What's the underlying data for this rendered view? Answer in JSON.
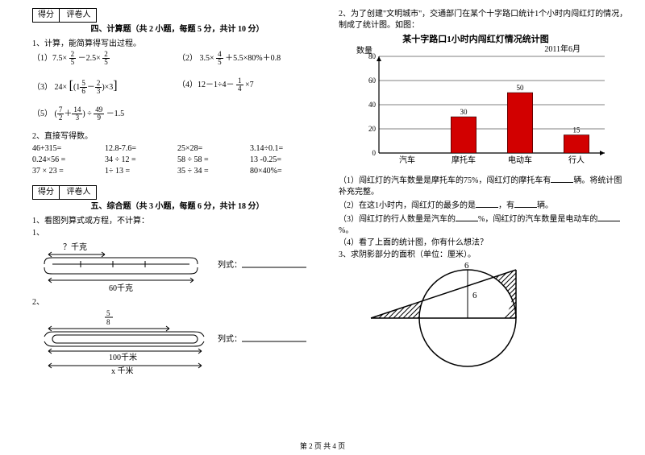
{
  "scoreBox": {
    "c1": "得分",
    "c2": "评卷人"
  },
  "sec4": {
    "title": "四、计算题（共 2 小题，每题 5 分，共计 10 分）",
    "q1": "1、计算，能简算得写出过程。",
    "q1_1a": "（1）7.5×",
    "q1_1b": "－2.5×",
    "q1_2a": "（2）",
    "q1_2b": "3.5×",
    "q1_2c": "＋5.5×80%＋0.8",
    "q1_3a": "（3）",
    "q1_3b": "24×",
    "q1_4a": "（4）12－1÷4－",
    "q1_4b": "×7",
    "q1_5a": "（5）",
    "q1_5b": "÷",
    "q1_5c": "－1.5",
    "q2": "2、直接写得数。",
    "r": [
      [
        "46+315=",
        "12.8-7.6=",
        "25×28=",
        "3.14÷0.1="
      ],
      [
        "0.24×56 =",
        "34 ÷ 12 =",
        "58 ÷ 58 =",
        "13 -0.25="
      ],
      [
        "37 × 23 =",
        "1÷ 13 =",
        "35 ÷ 34 =",
        "80×40%="
      ]
    ]
  },
  "sec5": {
    "title": "五、综合题（共 3 小题，每题 6 分，共计 18 分）",
    "q1": "1、看图列算式或方程，不计算：",
    "sub1": "1、",
    "sub2": "2、",
    "label1a": "？千克",
    "label1b": "60千克",
    "label_lieshi": "列式：",
    "label2a": "5",
    "label2b": "8",
    "label2c": "100千米",
    "label2d": "x 千米"
  },
  "rightCol": {
    "q2": "2、为了创建\"文明城市\"，交通部门在某个十字路口统计1个小时内闯红灯的情况，制成了统计图。如图：",
    "chart": {
      "title": "某十字路口1小时内闯红灯情况统计图",
      "subtitle": "2011年6月",
      "ylabel": "数量",
      "categories": [
        "汽车",
        "摩托车",
        "电动车",
        "行人"
      ],
      "values": [
        null,
        30,
        50,
        15
      ],
      "value_labels": [
        "",
        "30",
        "50",
        "15"
      ],
      "ymax": 80,
      "ystep": 20,
      "bar_color": "#d20000",
      "grid_color": "#000",
      "bg": "#fff"
    },
    "s1": "（1）闯红灯的汽车数量是摩托车的75%，闯红灯的摩托车有",
    "s1b": "辆。将统计图补充完整。",
    "s2": "（2）在这1小时内，闯红灯的最多的是",
    "s2b": "，有",
    "s2c": "辆。",
    "s3": "（3）闯红灯的行人数量是汽车的",
    "s3b": "%，闯红灯的汽车数量是电动车的",
    "s3c": "%。",
    "s4": "（4）看了上面的统计图，你有什么想法？",
    "q3": "3、求阴影部分的面积（单位：厘米）。",
    "geo": {
      "a": "6",
      "b": "6"
    }
  },
  "footer": "第 2 页  共 4 页"
}
